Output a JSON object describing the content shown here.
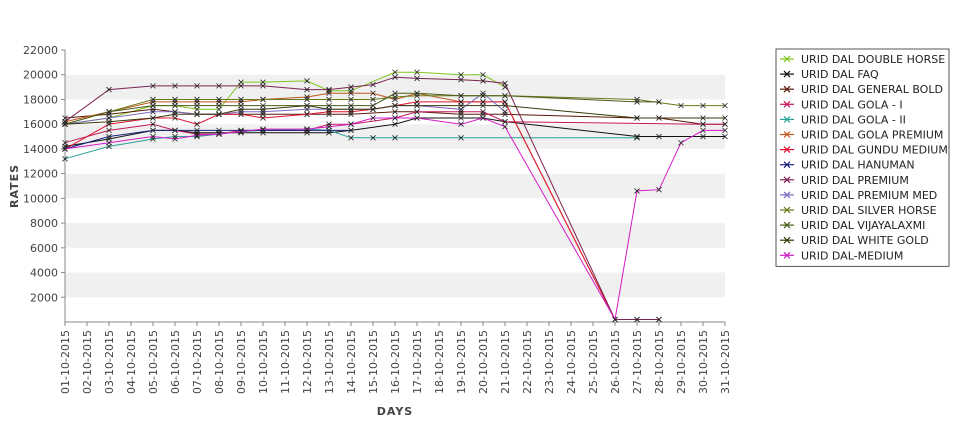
{
  "chart_data": {
    "type": "line",
    "title": "",
    "xlabel": "DAYS",
    "ylabel": "RATES",
    "ylim": [
      0,
      22000
    ],
    "yticks": [
      2000,
      4000,
      6000,
      8000,
      10000,
      12000,
      14000,
      16000,
      18000,
      20000,
      22000
    ],
    "grid": "horizontal-bands",
    "legend_position": "right",
    "categories": [
      "01-10-2015",
      "02-10-2015",
      "03-10-2015",
      "04-10-2015",
      "05-10-2015",
      "06-10-2015",
      "07-10-2015",
      "08-10-2015",
      "09-10-2015",
      "10-10-2015",
      "11-10-2015",
      "12-10-2015",
      "13-10-2015",
      "14-10-2015",
      "15-10-2015",
      "16-10-2015",
      "17-10-2015",
      "18-10-2015",
      "19-10-2015",
      "20-10-2015",
      "21-10-2015",
      "22-10-2015",
      "23-10-2015",
      "24-10-2015",
      "25-10-2015",
      "26-10-2015",
      "27-10-2015",
      "28-10-2015",
      "29-10-2015",
      "30-10-2015",
      "31-10-2015"
    ],
    "series": [
      {
        "name": "URID DAL DOUBLE HORSE",
        "color": "#7fc31c",
        "values": [
          16000,
          null,
          16500,
          null,
          17500,
          17500,
          17200,
          17200,
          19400,
          19400,
          null,
          19500,
          18700,
          18700,
          null,
          20200,
          20200,
          null,
          20000,
          20000,
          19000,
          null,
          null,
          null,
          null,
          null,
          null,
          null,
          null,
          null,
          null
        ]
      },
      {
        "name": "URID DAL FAQ",
        "color": "#111111",
        "values": [
          14200,
          null,
          14800,
          null,
          15500,
          15500,
          15300,
          15300,
          15300,
          15300,
          null,
          15300,
          15300,
          15500,
          null,
          16000,
          16500,
          null,
          16500,
          16500,
          16200,
          null,
          null,
          null,
          null,
          null,
          15000,
          15000,
          null,
          15000,
          15000
        ]
      },
      {
        "name": "URID DAL GENERAL BOLD",
        "color": "#5b1a0a",
        "values": [
          16500,
          null,
          16800,
          null,
          17200,
          17000,
          16800,
          16800,
          16800,
          16800,
          null,
          16800,
          16800,
          16800,
          null,
          17000,
          17000,
          null,
          16800,
          16800,
          16800,
          null,
          null,
          null,
          null,
          null,
          16500,
          16500,
          null,
          16000,
          16000
        ]
      },
      {
        "name": "URID DAL GOLA - I",
        "color": "#c2185b",
        "values": [
          14500,
          null,
          15500,
          null,
          16000,
          15500,
          15200,
          15200,
          15500,
          15500,
          null,
          15500,
          16000,
          16000,
          null,
          16500,
          17000,
          null,
          17000,
          17000,
          16200,
          null,
          null,
          null,
          null,
          null,
          null,
          null,
          null,
          16000,
          16000
        ]
      },
      {
        "name": "URID DAL GOLA - II",
        "color": "#2aa198",
        "values": [
          13200,
          null,
          14200,
          null,
          14800,
          15000,
          15000,
          15200,
          15400,
          15500,
          null,
          15600,
          15500,
          14900,
          14900,
          14900,
          null,
          null,
          14900,
          null,
          null,
          null,
          null,
          null,
          null,
          null,
          14900,
          null,
          null,
          null,
          null
        ]
      },
      {
        "name": "URID DAL GOLA PREMIUM",
        "color": "#c0551a",
        "values": [
          16200,
          null,
          17000,
          null,
          17800,
          17800,
          17800,
          17800,
          17800,
          18000,
          null,
          18200,
          18500,
          18500,
          18500,
          18000,
          18500,
          null,
          17800,
          17800,
          17800,
          null,
          null,
          null,
          null,
          200,
          200,
          200,
          null,
          null,
          null
        ]
      },
      {
        "name": "URID DAL GUNDU MEDIUM",
        "color": "#e01030",
        "values": [
          14000,
          null,
          16000,
          null,
          16500,
          16500,
          16000,
          16800,
          16800,
          16500,
          null,
          16800,
          17000,
          17000,
          17200,
          17500,
          17800,
          null,
          17800,
          17800,
          17800,
          null,
          null,
          null,
          null,
          200,
          200,
          200,
          null,
          null,
          null
        ]
      },
      {
        "name": "URID DAL HANUMAN",
        "color": "#1a237e",
        "values": [
          14000,
          null,
          15000,
          null,
          15500,
          15500,
          15500,
          15500,
          15500,
          15500,
          null,
          15500,
          15500,
          15500,
          null,
          null,
          null,
          null,
          null,
          null,
          null,
          null,
          null,
          null,
          null,
          null,
          null,
          null,
          null,
          null,
          null
        ]
      },
      {
        "name": "URID DAL PREMIUM",
        "color": "#7b2352",
        "values": [
          16200,
          null,
          18800,
          null,
          19100,
          19100,
          19100,
          19100,
          19100,
          19100,
          null,
          18800,
          18800,
          19000,
          19200,
          19800,
          19700,
          null,
          19600,
          19500,
          19300,
          null,
          null,
          null,
          null,
          200,
          200,
          200,
          null,
          null,
          null
        ]
      },
      {
        "name": "URID DAL PREMIUM MED",
        "color": "#7d6ac2",
        "values": [
          16000,
          null,
          16500,
          null,
          17000,
          17000,
          16800,
          16800,
          17000,
          17000,
          null,
          17200,
          17200,
          17200,
          17200,
          17500,
          17500,
          null,
          17200,
          18500,
          17000,
          null,
          null,
          null,
          null,
          null,
          null,
          null,
          null,
          null,
          null
        ]
      },
      {
        "name": "URID DAL SILVER HORSE",
        "color": "#6b7a1a",
        "values": [
          16000,
          null,
          17000,
          null,
          18000,
          18000,
          18000,
          18000,
          18000,
          18000,
          null,
          18000,
          18000,
          18000,
          18000,
          18200,
          18300,
          null,
          18300,
          18300,
          18300,
          null,
          null,
          null,
          null,
          null,
          18000,
          null,
          17500,
          17500,
          17500
        ]
      },
      {
        "name": "URID DAL VIJAYALAXMI",
        "color": "#4a5d1a",
        "values": [
          16000,
          null,
          17000,
          null,
          17500,
          17500,
          17500,
          17500,
          17500,
          17500,
          null,
          17500,
          17500,
          17500,
          17500,
          18500,
          18500,
          null,
          18300,
          18300,
          18300,
          null,
          null,
          null,
          null,
          null,
          17800,
          17800,
          null,
          null,
          null
        ]
      },
      {
        "name": "URID DAL WHITE GOLD",
        "color": "#3a3a0a",
        "values": [
          16000,
          null,
          16200,
          null,
          16500,
          16800,
          16800,
          16800,
          17200,
          17200,
          null,
          17500,
          17200,
          17200,
          17200,
          17500,
          17500,
          null,
          17500,
          17500,
          17500,
          null,
          null,
          null,
          null,
          null,
          16500,
          16500,
          null,
          16500,
          16500
        ]
      },
      {
        "name": "URID DAL-MEDIUM",
        "color": "#d41bc8",
        "values": [
          14000,
          null,
          14500,
          null,
          15000,
          14800,
          15100,
          15200,
          15400,
          15600,
          null,
          15600,
          15800,
          16000,
          16500,
          16500,
          16500,
          null,
          16000,
          16500,
          15800,
          null,
          null,
          null,
          null,
          200,
          10600,
          10700,
          14500,
          15500,
          15500
        ]
      }
    ]
  }
}
